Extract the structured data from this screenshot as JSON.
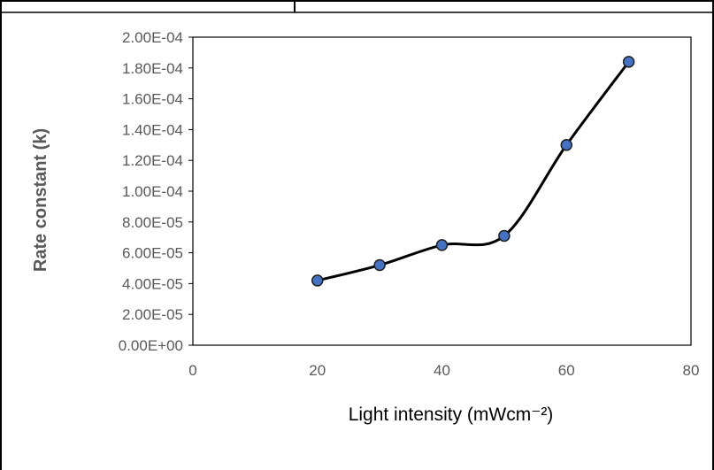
{
  "chart_data": {
    "type": "line",
    "title": "",
    "xlabel": "Light intensity (mWcm⁻²)",
    "ylabel": "Rate constant (k)",
    "xlim": [
      0,
      80
    ],
    "ylim": [
      0,
      0.0002
    ],
    "x_ticks": [
      "0",
      "20",
      "40",
      "60",
      "80"
    ],
    "y_ticks": [
      "0.00E+00",
      "2.00E-05",
      "4.00E-05",
      "6.00E-05",
      "8.00E-05",
      "1.00E-04",
      "1.20E-04",
      "1.40E-04",
      "1.60E-04",
      "1.80E-04",
      "2.00E-04"
    ],
    "grid": false,
    "legend": "none",
    "smooth": true,
    "series": [
      {
        "x": [
          20,
          30,
          40,
          50,
          60,
          70
        ],
        "y": [
          4.2e-05,
          5.2e-05,
          6.5e-05,
          7.1e-05,
          0.00013,
          0.000184
        ]
      }
    ],
    "colors": {
      "line": "#000000",
      "marker_fill": "#4472C4",
      "marker_stroke": "#1F1F1F",
      "axis": "#000000",
      "tick_text": "#595959"
    }
  }
}
